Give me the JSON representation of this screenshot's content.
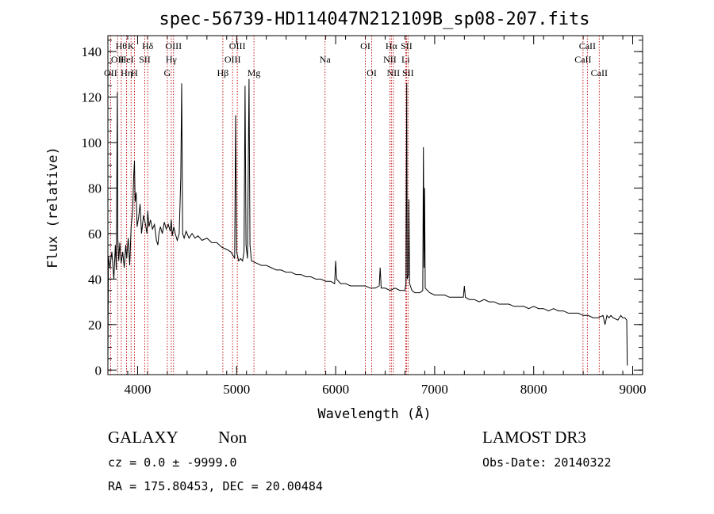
{
  "colors": {
    "frame": "#000000",
    "spectrum": "#000000",
    "lines": "#c00000"
  },
  "chart_data": {
    "type": "line",
    "title": "spec-56739-HD114047N212109B_sp08-207.fits",
    "xlabel": "Wavelength (Å)",
    "ylabel": "Flux (relative)",
    "xlim": [
      3700,
      9100
    ],
    "ylim": [
      -2,
      147
    ],
    "xticks": [
      4000,
      5000,
      6000,
      7000,
      8000,
      9000
    ],
    "yticks": [
      0,
      20,
      40,
      60,
      80,
      100,
      120,
      140
    ],
    "x_minor_step": 200,
    "y_minor_step": 5,
    "series": [
      {
        "name": "spectrum",
        "points": [
          [
            3700,
            2
          ],
          [
            3705,
            50
          ],
          [
            3720,
            45
          ],
          [
            3740,
            52
          ],
          [
            3760,
            40
          ],
          [
            3775,
            55
          ],
          [
            3785,
            44
          ],
          [
            3795,
            122
          ],
          [
            3800,
            58
          ],
          [
            3810,
            48
          ],
          [
            3820,
            56
          ],
          [
            3835,
            47
          ],
          [
            3850,
            52
          ],
          [
            3865,
            45
          ],
          [
            3880,
            55
          ],
          [
            3890,
            49
          ],
          [
            3905,
            58
          ],
          [
            3920,
            46
          ],
          [
            3935,
            63
          ],
          [
            3950,
            70
          ],
          [
            3960,
            85
          ],
          [
            3968,
            92
          ],
          [
            3975,
            74
          ],
          [
            3985,
            78
          ],
          [
            3995,
            63
          ],
          [
            4010,
            67
          ],
          [
            4025,
            73
          ],
          [
            4040,
            60
          ],
          [
            4060,
            68
          ],
          [
            4080,
            64
          ],
          [
            4095,
            60
          ],
          [
            4102,
            70
          ],
          [
            4115,
            63
          ],
          [
            4130,
            66
          ],
          [
            4150,
            62
          ],
          [
            4170,
            64
          ],
          [
            4190,
            57
          ],
          [
            4205,
            55
          ],
          [
            4215,
            60
          ],
          [
            4230,
            63
          ],
          [
            4250,
            60
          ],
          [
            4270,
            65
          ],
          [
            4290,
            62
          ],
          [
            4310,
            64
          ],
          [
            4330,
            61
          ],
          [
            4340,
            66
          ],
          [
            4350,
            59
          ],
          [
            4365,
            63
          ],
          [
            4380,
            60
          ],
          [
            4400,
            57
          ],
          [
            4420,
            60
          ],
          [
            4436,
            85
          ],
          [
            4445,
            126
          ],
          [
            4455,
            60
          ],
          [
            4470,
            58
          ],
          [
            4490,
            61
          ],
          [
            4520,
            58
          ],
          [
            4550,
            60
          ],
          [
            4580,
            58
          ],
          [
            4610,
            59
          ],
          [
            4650,
            57
          ],
          [
            4700,
            58
          ],
          [
            4750,
            56
          ],
          [
            4800,
            56
          ],
          [
            4850,
            54
          ],
          [
            4900,
            53
          ],
          [
            4940,
            52
          ],
          [
            4970,
            50
          ],
          [
            4980,
            49
          ],
          [
            4990,
            112
          ],
          [
            5000,
            52
          ],
          [
            5020,
            48
          ],
          [
            5040,
            49
          ],
          [
            5060,
            48
          ],
          [
            5075,
            52
          ],
          [
            5085,
            125
          ],
          [
            5095,
            55
          ],
          [
            5110,
            49
          ],
          [
            5125,
            128
          ],
          [
            5135,
            55
          ],
          [
            5150,
            48
          ],
          [
            5200,
            47
          ],
          [
            5250,
            46
          ],
          [
            5300,
            46
          ],
          [
            5350,
            45
          ],
          [
            5400,
            44
          ],
          [
            5450,
            44
          ],
          [
            5500,
            43
          ],
          [
            5550,
            43
          ],
          [
            5600,
            42
          ],
          [
            5650,
            42
          ],
          [
            5700,
            41
          ],
          [
            5750,
            41
          ],
          [
            5800,
            40
          ],
          [
            5850,
            40
          ],
          [
            5900,
            39
          ],
          [
            5950,
            39
          ],
          [
            5990,
            38
          ],
          [
            6000,
            48
          ],
          [
            6010,
            40
          ],
          [
            6050,
            38
          ],
          [
            6100,
            38
          ],
          [
            6150,
            37
          ],
          [
            6200,
            37
          ],
          [
            6250,
            37
          ],
          [
            6300,
            37
          ],
          [
            6350,
            36
          ],
          [
            6400,
            36
          ],
          [
            6440,
            37
          ],
          [
            6450,
            45
          ],
          [
            6460,
            36
          ],
          [
            6500,
            36
          ],
          [
            6550,
            35
          ],
          [
            6600,
            36
          ],
          [
            6650,
            35
          ],
          [
            6700,
            35
          ],
          [
            6710,
            38
          ],
          [
            6718,
            126
          ],
          [
            6723,
            40
          ],
          [
            6735,
            42
          ],
          [
            6740,
            75
          ],
          [
            6747,
            38
          ],
          [
            6770,
            35
          ],
          [
            6800,
            34
          ],
          [
            6850,
            34
          ],
          [
            6880,
            35
          ],
          [
            6886,
            98
          ],
          [
            6893,
            45
          ],
          [
            6898,
            80
          ],
          [
            6905,
            36
          ],
          [
            6950,
            34
          ],
          [
            7000,
            33
          ],
          [
            7050,
            33
          ],
          [
            7100,
            33
          ],
          [
            7150,
            32
          ],
          [
            7200,
            32
          ],
          [
            7250,
            32
          ],
          [
            7290,
            32
          ],
          [
            7300,
            37
          ],
          [
            7310,
            32
          ],
          [
            7350,
            31
          ],
          [
            7400,
            31
          ],
          [
            7450,
            30
          ],
          [
            7500,
            31
          ],
          [
            7550,
            30
          ],
          [
            7600,
            30
          ],
          [
            7650,
            29
          ],
          [
            7700,
            29
          ],
          [
            7750,
            29
          ],
          [
            7800,
            28
          ],
          [
            7850,
            28
          ],
          [
            7900,
            28
          ],
          [
            7950,
            27
          ],
          [
            8000,
            28
          ],
          [
            8050,
            27
          ],
          [
            8100,
            27
          ],
          [
            8150,
            26
          ],
          [
            8200,
            27
          ],
          [
            8250,
            26
          ],
          [
            8300,
            26
          ],
          [
            8350,
            25
          ],
          [
            8400,
            25
          ],
          [
            8450,
            25
          ],
          [
            8500,
            24
          ],
          [
            8550,
            24
          ],
          [
            8600,
            23
          ],
          [
            8650,
            23
          ],
          [
            8700,
            24
          ],
          [
            8720,
            20
          ],
          [
            8740,
            24
          ],
          [
            8760,
            23
          ],
          [
            8780,
            24
          ],
          [
            8800,
            23
          ],
          [
            8850,
            22
          ],
          [
            8880,
            24
          ],
          [
            8900,
            23
          ],
          [
            8920,
            23
          ],
          [
            8940,
            22
          ],
          [
            8945,
            2
          ]
        ]
      }
    ],
    "line_markers": [
      {
        "wavelength": 3727,
        "label": "OII",
        "row": 2
      },
      {
        "wavelength": 3798,
        "label": "OII",
        "row": 1
      },
      {
        "wavelength": 3835,
        "label": "Hθ",
        "row": 0
      },
      {
        "wavelength": 3889,
        "label": "HeI",
        "row": 1
      },
      {
        "wavelength": 3889,
        "label": "Hη",
        "row": 2
      },
      {
        "wavelength": 3934,
        "label": "K",
        "row": 0
      },
      {
        "wavelength": 3968,
        "label": "H",
        "row": 2
      },
      {
        "wavelength": 4072,
        "label": "SII",
        "row": 1
      },
      {
        "wavelength": 4102,
        "label": "Hδ",
        "row": 0
      },
      {
        "wavelength": 4300,
        "label": "G",
        "row": 2
      },
      {
        "wavelength": 4340,
        "label": "Hγ",
        "row": 1
      },
      {
        "wavelength": 4363,
        "label": "OIII",
        "row": 0
      },
      {
        "wavelength": 4861,
        "label": "Hβ",
        "row": 2
      },
      {
        "wavelength": 4959,
        "label": "OIII",
        "row": 1
      },
      {
        "wavelength": 5007,
        "label": "OIII",
        "row": 0
      },
      {
        "wavelength": 5175,
        "label": "Mg",
        "row": 2
      },
      {
        "wavelength": 5893,
        "label": "Na",
        "row": 1
      },
      {
        "wavelength": 6300,
        "label": "OI",
        "row": 0
      },
      {
        "wavelength": 6364,
        "label": "OI",
        "row": 2
      },
      {
        "wavelength": 6548,
        "label": "NII",
        "row": 1
      },
      {
        "wavelength": 6563,
        "label": "Hα",
        "row": 0
      },
      {
        "wavelength": 6583,
        "label": "NII",
        "row": 2
      },
      {
        "wavelength": 6707,
        "label": "Li",
        "row": 1
      },
      {
        "wavelength": 6716,
        "label": "SII",
        "row": 0
      },
      {
        "wavelength": 6731,
        "label": "SII",
        "row": 2
      },
      {
        "wavelength": 8498,
        "label": "CaII",
        "row": 1
      },
      {
        "wavelength": 8542,
        "label": "CaII",
        "row": 0
      },
      {
        "wavelength": 8662,
        "label": "CaII",
        "row": 2
      }
    ]
  },
  "info": {
    "class": "GALAXY",
    "subclass": "Non",
    "cz": "cz = 0.0 ± -9999.0",
    "coords": "RA = 175.80453, DEC =  20.00484",
    "survey": "LAMOST DR3",
    "obsdate": "Obs-Date: 20140322"
  }
}
